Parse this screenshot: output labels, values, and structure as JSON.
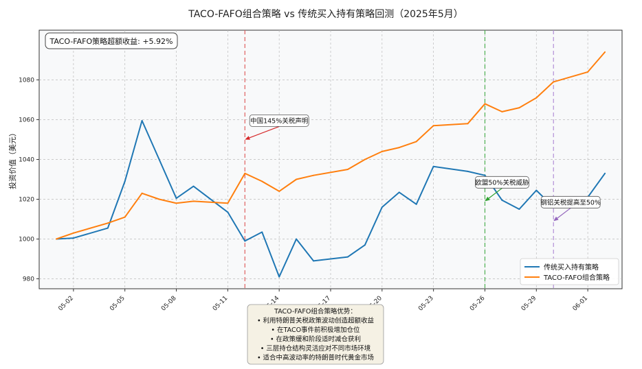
{
  "chart_data": {
    "type": "line",
    "title": "TACO-FAFO组合策略 vs 传统买入持有策略回测（2025年5月）",
    "ylabel": "投资价值（美元）",
    "xlabel": "",
    "ylim": [
      975,
      1105
    ],
    "x_range": [
      "2025-04-30",
      "2025-06-03"
    ],
    "grid": true,
    "legend_position": "lower-right",
    "x_ticks": [
      {
        "date": "2025-05-02",
        "label": "05-02"
      },
      {
        "date": "2025-05-05",
        "label": "05-05"
      },
      {
        "date": "2025-05-08",
        "label": "05-08"
      },
      {
        "date": "2025-05-11",
        "label": "05-11"
      },
      {
        "date": "2025-05-14",
        "label": "05-14"
      },
      {
        "date": "2025-05-17",
        "label": "05-17"
      },
      {
        "date": "2025-05-20",
        "label": "05-20"
      },
      {
        "date": "2025-05-23",
        "label": "05-23"
      },
      {
        "date": "2025-05-26",
        "label": "05-26"
      },
      {
        "date": "2025-05-29",
        "label": "05-29"
      },
      {
        "date": "2025-06-01",
        "label": "06-01"
      }
    ],
    "y_ticks": [
      980,
      1000,
      1020,
      1040,
      1060,
      1080
    ],
    "series": [
      {
        "name": "传统买入持有策略",
        "color": "#1f77b4",
        "points": [
          {
            "x": "2025-05-01",
            "y": 1000
          },
          {
            "x": "2025-05-02",
            "y": 1000.5
          },
          {
            "x": "2025-05-04",
            "y": 1005.5
          },
          {
            "x": "2025-05-05",
            "y": 1029
          },
          {
            "x": "2025-05-06",
            "y": 1059.5
          },
          {
            "x": "2025-05-07",
            "y": 1040
          },
          {
            "x": "2025-05-08",
            "y": 1020.5
          },
          {
            "x": "2025-05-09",
            "y": 1026.5
          },
          {
            "x": "2025-05-11",
            "y": 1013.5
          },
          {
            "x": "2025-05-12",
            "y": 999
          },
          {
            "x": "2025-05-13",
            "y": 1003.5
          },
          {
            "x": "2025-05-14",
            "y": 981
          },
          {
            "x": "2025-05-15",
            "y": 1000
          },
          {
            "x": "2025-05-16",
            "y": 989
          },
          {
            "x": "2025-05-18",
            "y": 991
          },
          {
            "x": "2025-05-19",
            "y": 997
          },
          {
            "x": "2025-05-20",
            "y": 1016
          },
          {
            "x": "2025-05-21",
            "y": 1023.5
          },
          {
            "x": "2025-05-22",
            "y": 1017.5
          },
          {
            "x": "2025-05-23",
            "y": 1036.5
          },
          {
            "x": "2025-05-25",
            "y": 1034
          },
          {
            "x": "2025-05-26",
            "y": 1032
          },
          {
            "x": "2025-05-27",
            "y": 1019.5
          },
          {
            "x": "2025-05-28",
            "y": 1015
          },
          {
            "x": "2025-05-29",
            "y": 1024.5
          },
          {
            "x": "2025-05-30",
            "y": 1016
          },
          {
            "x": "2025-06-01",
            "y": 1021
          },
          {
            "x": "2025-06-02",
            "y": 1033
          }
        ]
      },
      {
        "name": "TACO-FAFO组合策略",
        "color": "#ff7f0e",
        "points": [
          {
            "x": "2025-05-01",
            "y": 1000
          },
          {
            "x": "2025-05-02",
            "y": 1003
          },
          {
            "x": "2025-05-04",
            "y": 1008
          },
          {
            "x": "2025-05-05",
            "y": 1011
          },
          {
            "x": "2025-05-06",
            "y": 1023
          },
          {
            "x": "2025-05-07",
            "y": 1020
          },
          {
            "x": "2025-05-08",
            "y": 1018
          },
          {
            "x": "2025-05-09",
            "y": 1019
          },
          {
            "x": "2025-05-11",
            "y": 1018
          },
          {
            "x": "2025-05-12",
            "y": 1033
          },
          {
            "x": "2025-05-13",
            "y": 1029
          },
          {
            "x": "2025-05-14",
            "y": 1024
          },
          {
            "x": "2025-05-15",
            "y": 1030
          },
          {
            "x": "2025-05-16",
            "y": 1032
          },
          {
            "x": "2025-05-18",
            "y": 1035
          },
          {
            "x": "2025-05-19",
            "y": 1040
          },
          {
            "x": "2025-05-20",
            "y": 1044
          },
          {
            "x": "2025-05-21",
            "y": 1046
          },
          {
            "x": "2025-05-22",
            "y": 1049
          },
          {
            "x": "2025-05-23",
            "y": 1057
          },
          {
            "x": "2025-05-25",
            "y": 1058
          },
          {
            "x": "2025-05-26",
            "y": 1068
          },
          {
            "x": "2025-05-27",
            "y": 1064
          },
          {
            "x": "2025-05-28",
            "y": 1066
          },
          {
            "x": "2025-05-29",
            "y": 1071
          },
          {
            "x": "2025-05-30",
            "y": 1079
          },
          {
            "x": "2025-06-01",
            "y": 1084
          },
          {
            "x": "2025-06-02",
            "y": 1094
          }
        ]
      }
    ],
    "event_lines": [
      {
        "x": "2025-05-12",
        "color": "#e06060"
      },
      {
        "x": "2025-05-26",
        "color": "#4caf50"
      },
      {
        "x": "2025-05-30",
        "color": "#b38fd6"
      }
    ],
    "annotations": [
      {
        "text": "中国145%关税声明",
        "x": "2025-05-12",
        "y": 1050,
        "text_x": "2025-05-14",
        "text_y": 1059,
        "color": "#d62728"
      },
      {
        "text": "欧盟50%关税威胁",
        "x": "2025-05-26",
        "y": 1019,
        "text_x": "2025-05-27",
        "text_y": 1028,
        "color": "#2ca02c"
      },
      {
        "text": "钢铝关税提高至50%",
        "x": "2025-05-30",
        "y": 1009,
        "text_x": "2025-05-31",
        "text_y": 1018,
        "color": "#9467bd"
      }
    ],
    "summary_box": {
      "text": "TACO-FAFO策略超额收益: +5.92%"
    },
    "advantages_box": {
      "lines": [
        "TACO-FAFO组合策略优势：",
        "• 利用特朗普关税政策波动创造超额收益",
        "• 在TACO事件前积极增加仓位",
        "• 在政策缓和阶段适时减仓获利",
        "• 三层持仓结构灵活应对不同市场环境",
        "• 适合中高波动率的特朗普时代黄金市场"
      ]
    }
  }
}
